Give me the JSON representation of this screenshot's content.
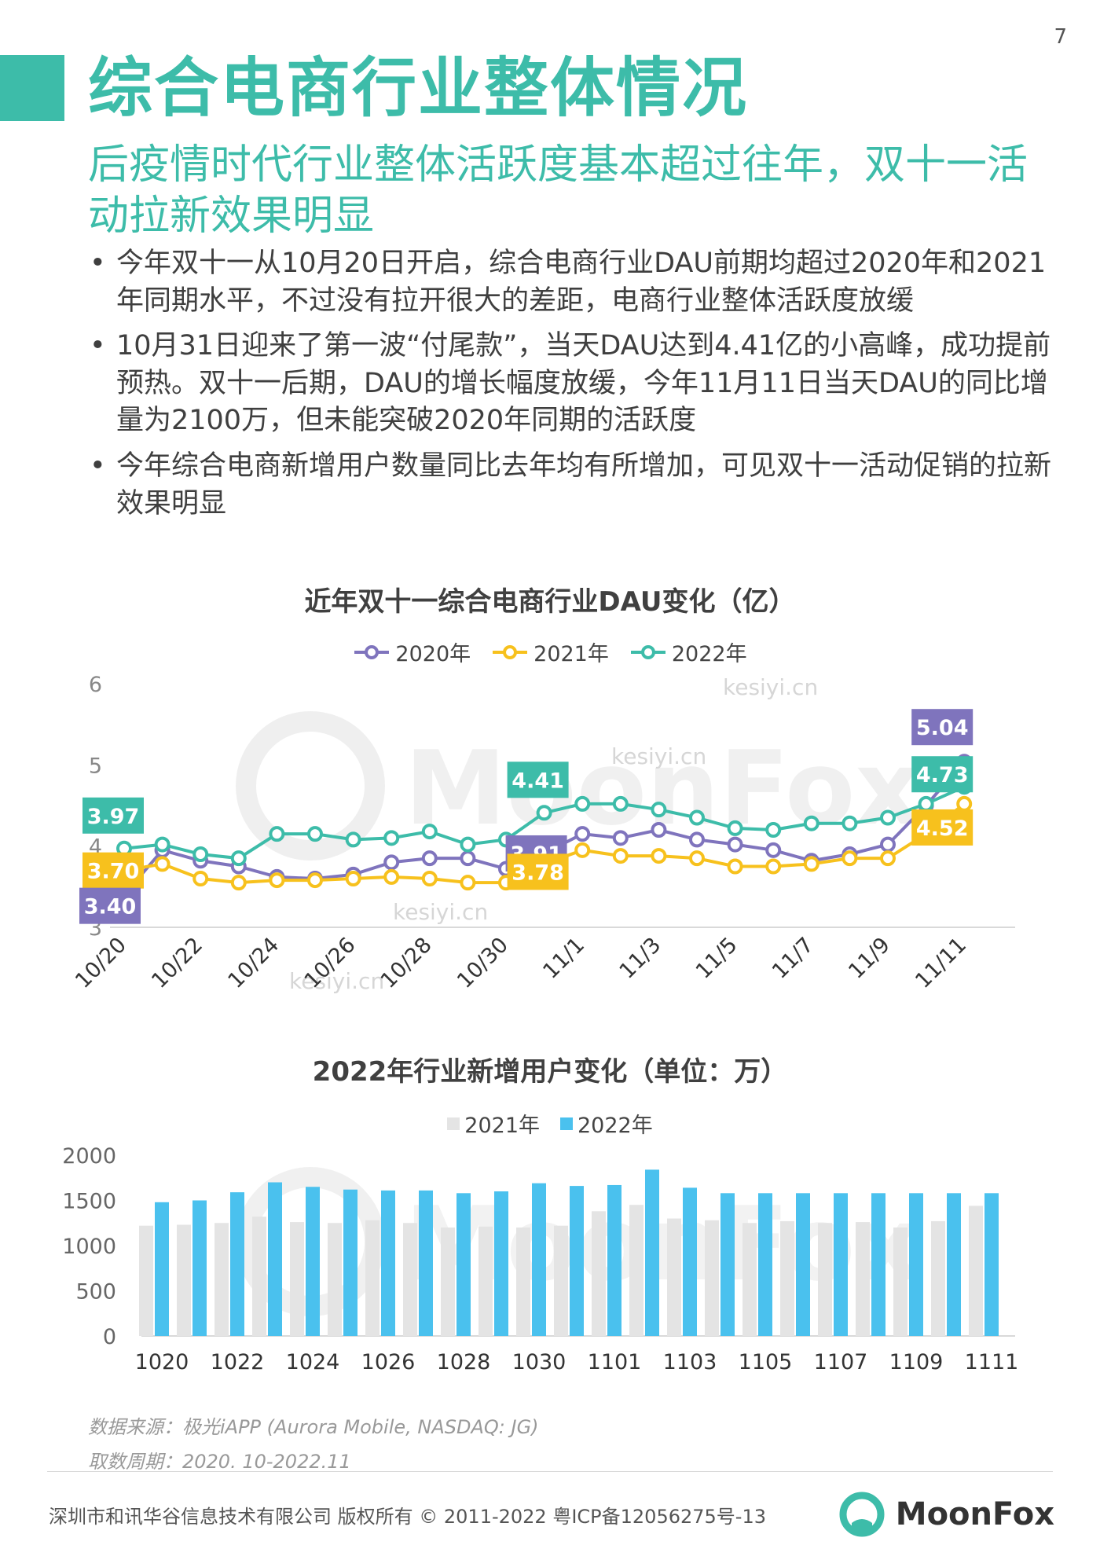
{
  "page_number": "7",
  "colors": {
    "accent": "#3dbca9",
    "purple": "#7f74bd",
    "yellow": "#f7c11d",
    "teal": "#3dbca9",
    "blue": "#4ac1ee",
    "gray": "#e4e4e4"
  },
  "title": "综合电商行业整体情况",
  "subtitle": "后疫情时代行业整体活跃度基本超过往年，双十一活动拉新效果明显",
  "bullets": [
    "今年双十一从10月20日开启，综合电商行业DAU前期均超过2020年和2021年同期水平，不过没有拉开很大的差距，电商行业整体活跃度放缓",
    "10月31日迎来了第一波“付尾款”，当天DAU达到4.41亿的小高峰，成功提前预热。双十一后期，DAU的增长幅度放缓，今年11月11日当天DAU的同比增量为2100万，但未能突破2020年同期的活跃度",
    "今年综合电商新增用户数量同比去年均有所增加，可见双十一活动促销的拉新效果明显"
  ],
  "watermark": {
    "brand": "MoonFox",
    "site": "kesiyi.cn"
  },
  "chart_data": [
    {
      "type": "line",
      "title": "近年双十一综合电商行业DAU变化（亿）",
      "categories": [
        "10/20",
        "10/21",
        "10/22",
        "10/23",
        "10/24",
        "10/25",
        "10/26",
        "10/27",
        "10/28",
        "10/29",
        "10/30",
        "10/31",
        "11/1",
        "11/2",
        "11/3",
        "11/4",
        "11/5",
        "11/6",
        "11/7",
        "11/8",
        "11/9",
        "11/10",
        "11/11"
      ],
      "tick_labels": [
        "10/20",
        "10/22",
        "10/24",
        "10/26",
        "10/28",
        "10/30",
        "11/1",
        "11/3",
        "11/5",
        "11/7",
        "11/9",
        "11/11"
      ],
      "ylim": [
        3,
        6
      ],
      "yticks": [
        "3",
        "4",
        "5",
        "6"
      ],
      "series": [
        {
          "name": "2020年",
          "color": "#7f74bd",
          "values": [
            3.4,
            3.95,
            3.82,
            3.75,
            3.62,
            3.6,
            3.65,
            3.8,
            3.85,
            3.85,
            3.72,
            3.91,
            4.15,
            4.1,
            4.2,
            4.08,
            4.02,
            3.95,
            3.82,
            3.9,
            4.02,
            4.5,
            5.04
          ]
        },
        {
          "name": "2021年",
          "color": "#f7c11d",
          "values": [
            3.7,
            3.78,
            3.6,
            3.55,
            3.58,
            3.58,
            3.6,
            3.62,
            3.6,
            3.55,
            3.55,
            3.78,
            3.95,
            3.88,
            3.88,
            3.85,
            3.75,
            3.75,
            3.78,
            3.85,
            3.85,
            4.15,
            4.52
          ]
        },
        {
          "name": "2022年",
          "color": "#3dbca9",
          "values": [
            3.97,
            4.02,
            3.9,
            3.85,
            4.15,
            4.15,
            4.08,
            4.1,
            4.18,
            4.02,
            4.08,
            4.41,
            4.52,
            4.52,
            4.45,
            4.35,
            4.22,
            4.2,
            4.28,
            4.28,
            4.35,
            4.52,
            4.73
          ]
        }
      ],
      "data_labels": [
        {
          "series": "2022年",
          "category": "10/20",
          "text": "3.97"
        },
        {
          "series": "2021年",
          "category": "10/20",
          "text": "3.70"
        },
        {
          "series": "2020年",
          "category": "10/20",
          "text": "3.40"
        },
        {
          "series": "2022年",
          "category": "10/31",
          "text": "4.41"
        },
        {
          "series": "2020年",
          "category": "10/31",
          "text": "3.91"
        },
        {
          "series": "2021年",
          "category": "10/31",
          "text": "3.78"
        },
        {
          "series": "2020年",
          "category": "11/11",
          "text": "5.04"
        },
        {
          "series": "2022年",
          "category": "11/11",
          "text": "4.73"
        },
        {
          "series": "2021年",
          "category": "11/11",
          "text": "4.52"
        }
      ]
    },
    {
      "type": "bar",
      "title": "2022年行业新增用户变化（单位：万）",
      "categories": [
        "1020",
        "1021",
        "1022",
        "1023",
        "1024",
        "1025",
        "1026",
        "1027",
        "1028",
        "1029",
        "1030",
        "1031",
        "1101",
        "1102",
        "1103",
        "1104",
        "1105",
        "1106",
        "1107",
        "1108",
        "1109",
        "1110",
        "1111"
      ],
      "tick_labels": [
        "1020",
        "1022",
        "1024",
        "1026",
        "1028",
        "1030",
        "1101",
        "1103",
        "1105",
        "1107",
        "1109",
        "1111"
      ],
      "ylim": [
        0,
        2000
      ],
      "yticks": [
        "0",
        "500",
        "1000",
        "1500",
        "2000"
      ],
      "series": [
        {
          "name": "2021年",
          "color": "#e4e4e4",
          "values": [
            1220,
            1230,
            1250,
            1320,
            1260,
            1250,
            1280,
            1250,
            1200,
            1210,
            1200,
            1220,
            1380,
            1450,
            1300,
            1280,
            1250,
            1270,
            1250,
            1260,
            1200,
            1270,
            1440
          ]
        },
        {
          "name": "2022年",
          "color": "#4ac1ee",
          "values": [
            1480,
            1500,
            1590,
            1700,
            1650,
            1620,
            1610,
            1610,
            1580,
            1600,
            1690,
            1660,
            1670,
            1840,
            1640,
            1580,
            1580,
            1580,
            1580,
            1580,
            1580,
            1580,
            1580
          ]
        }
      ]
    }
  ],
  "source": "数据来源：极光iAPP (Aurora Mobile, NASDAQ: JG)",
  "period": "取数周期：2020. 10-2022.11",
  "footer": "深圳市和讯华谷信息技术有限公司 版权所有 © 2011-2022 粤ICP备12056275号-13",
  "logo": "MoonFox"
}
